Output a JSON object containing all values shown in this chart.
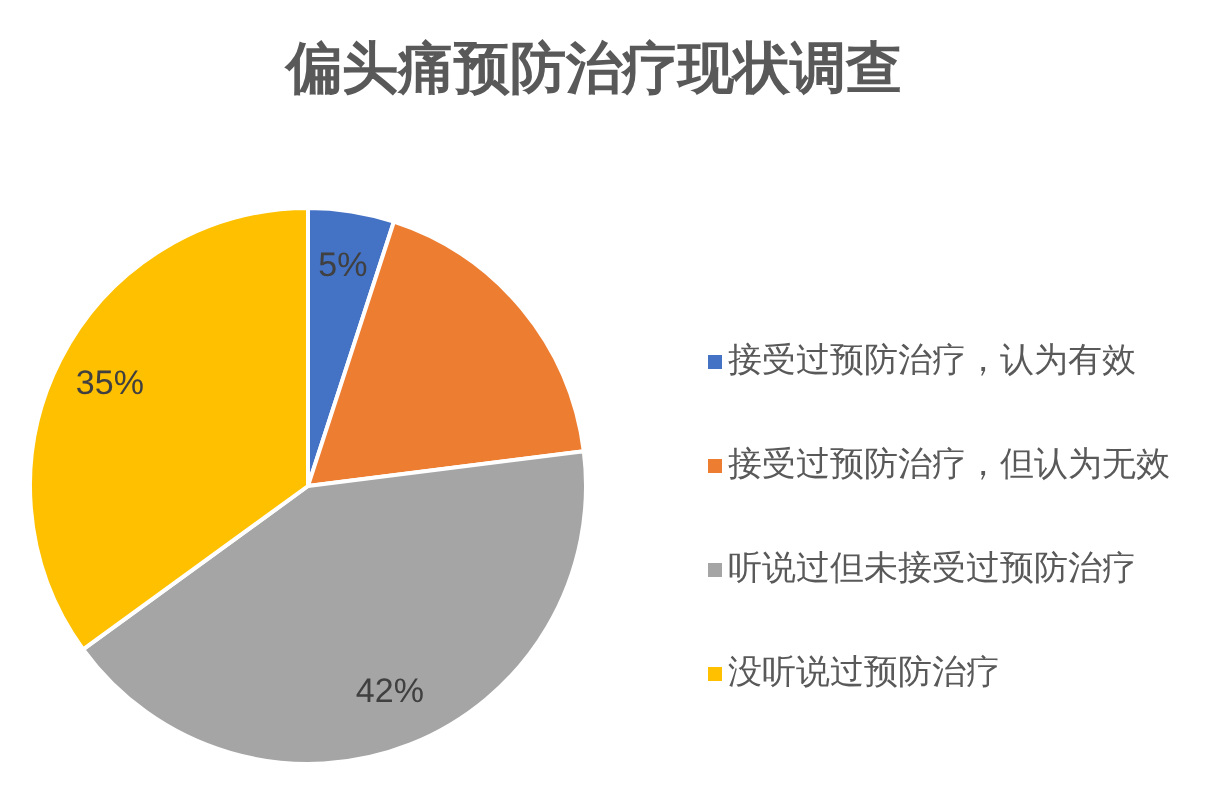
{
  "chart_data": {
    "type": "pie",
    "title": "偏头痛预防治疗现状调查",
    "categories": [
      "接受过预防治疗，认为有效",
      "接受过预防治疗，但认为无效",
      "听说过但未接受过预防治疗",
      "没听说过预防治疗"
    ],
    "values": [
      5,
      18,
      42,
      35
    ],
    "colors": [
      "#4472c4",
      "#ed7d31",
      "#a5a5a5",
      "#ffc000"
    ],
    "value_labels": [
      "5%",
      null,
      "42%",
      "35%"
    ],
    "legend": "right"
  }
}
